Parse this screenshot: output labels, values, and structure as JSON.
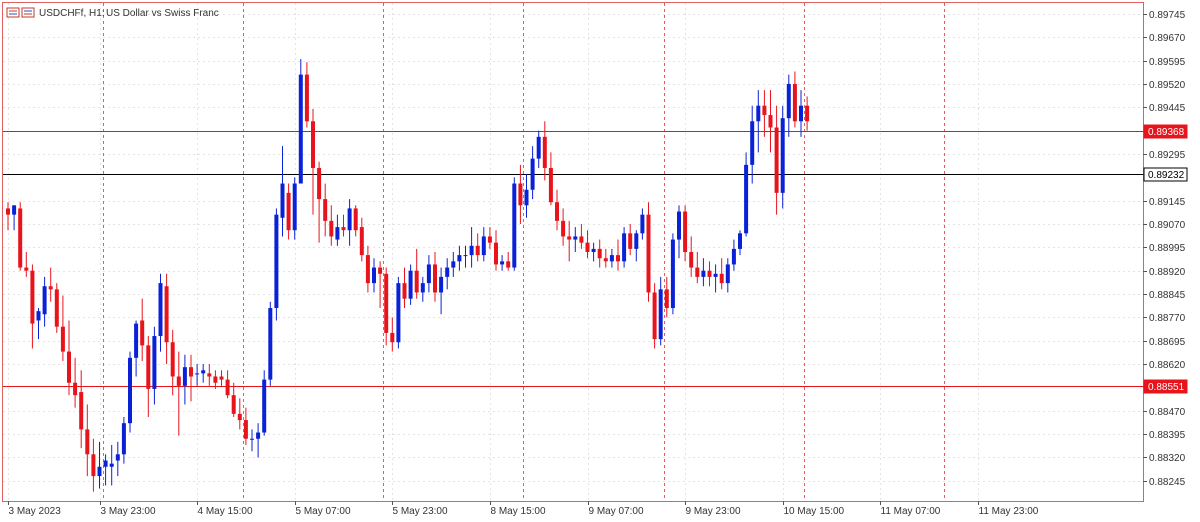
{
  "header": {
    "symbol_label": "USDCHFf, H1:",
    "description": "US Dollar vs Swiss Franc",
    "icon": "chart-window-icon"
  },
  "colors": {
    "bull": "#0a22d6",
    "bear": "#e8141c",
    "frame": "#e06060",
    "grid": "#e4e4e4",
    "period_sep": "#e06060",
    "bid_line": "#000000",
    "level_line": "#e8141c"
  },
  "chart_data": {
    "type": "candlestick",
    "symbol": "USDCHFf",
    "timeframe": "H1",
    "ylim": [
      0.8818,
      0.8978
    ],
    "y_ticks": [
      "0.89745",
      "0.89670",
      "0.89595",
      "0.89520",
      "0.89445",
      "0.89368",
      "0.89295",
      "0.89232",
      "0.89145",
      "0.89070",
      "0.88995",
      "0.88920",
      "0.88845",
      "0.88770",
      "0.88695",
      "0.88620",
      "0.88551",
      "0.88470",
      "0.88395",
      "0.88320",
      "0.88245"
    ],
    "x_ticks": [
      {
        "label": "3 May 2023",
        "index": 0
      },
      {
        "label": "3 May 23:00",
        "index": 15
      },
      {
        "label": "4 May 15:00",
        "index": 31
      },
      {
        "label": "5 May 07:00",
        "index": 47
      },
      {
        "label": "5 May 23:00",
        "index": 63
      },
      {
        "label": "8 May 15:00",
        "index": 79
      },
      {
        "label": "9 May 07:00",
        "index": 95
      },
      {
        "label": "9 May 23:00",
        "index": 111
      },
      {
        "label": "10 May 15:00",
        "index": 127
      },
      {
        "label": "11 May 07:00",
        "index": 143
      },
      {
        "label": "11 May 23:00",
        "index": 159
      }
    ],
    "period_separators": [
      16,
      39,
      62,
      85,
      108,
      131,
      154
    ],
    "horizontal_levels": [
      {
        "label": "0.89368",
        "price": 0.89368,
        "kind": "level"
      },
      {
        "label": "0.88551",
        "price": 0.88551,
        "kind": "level"
      },
      {
        "label": "0.89232",
        "price": 0.89232,
        "kind": "bid"
      }
    ],
    "candles": [
      [
        0.8912,
        0.8914,
        0.8905,
        0.891
      ],
      [
        0.891,
        0.8913,
        0.8905,
        0.8913
      ],
      [
        0.8912,
        0.8914,
        0.8892,
        0.8893
      ],
      [
        0.8893,
        0.8898,
        0.889,
        0.8892
      ],
      [
        0.8892,
        0.8894,
        0.8867,
        0.8875
      ],
      [
        0.8876,
        0.888,
        0.887,
        0.8879
      ],
      [
        0.8878,
        0.889,
        0.8874,
        0.8887
      ],
      [
        0.8887,
        0.8893,
        0.8882,
        0.8886
      ],
      [
        0.8886,
        0.8888,
        0.8872,
        0.8874
      ],
      [
        0.8874,
        0.8884,
        0.8863,
        0.8866
      ],
      [
        0.8866,
        0.8876,
        0.8852,
        0.8856
      ],
      [
        0.8856,
        0.8864,
        0.8848,
        0.8852
      ],
      [
        0.8853,
        0.886,
        0.8835,
        0.8841
      ],
      [
        0.8841,
        0.8849,
        0.8826,
        0.8833
      ],
      [
        0.8833,
        0.8838,
        0.8821,
        0.8826
      ],
      [
        0.8826,
        0.8837,
        0.8822,
        0.8829
      ],
      [
        0.8829,
        0.8833,
        0.8823,
        0.8831
      ],
      [
        0.8829,
        0.8836,
        0.8823,
        0.883
      ],
      [
        0.8831,
        0.8837,
        0.8826,
        0.8833
      ],
      [
        0.8833,
        0.8845,
        0.883,
        0.8843
      ],
      [
        0.8843,
        0.8866,
        0.884,
        0.8864
      ],
      [
        0.8864,
        0.8876,
        0.8858,
        0.8875
      ],
      [
        0.8876,
        0.8883,
        0.8863,
        0.8868
      ],
      [
        0.8868,
        0.8871,
        0.8845,
        0.8854
      ],
      [
        0.8854,
        0.8874,
        0.8849,
        0.8871
      ],
      [
        0.8871,
        0.8891,
        0.8866,
        0.8888
      ],
      [
        0.8887,
        0.8891,
        0.8862,
        0.8869
      ],
      [
        0.8869,
        0.8873,
        0.8852,
        0.8858
      ],
      [
        0.8858,
        0.8866,
        0.8839,
        0.8855
      ],
      [
        0.8855,
        0.8865,
        0.8849,
        0.8861
      ],
      [
        0.8861,
        0.8865,
        0.885,
        0.8858
      ],
      [
        0.8859,
        0.8862,
        0.8855,
        0.8859
      ],
      [
        0.8859,
        0.8862,
        0.8856,
        0.886
      ],
      [
        0.8859,
        0.8862,
        0.8855,
        0.8858
      ],
      [
        0.8858,
        0.886,
        0.8854,
        0.8856
      ],
      [
        0.8858,
        0.886,
        0.8855,
        0.8857
      ],
      [
        0.8857,
        0.886,
        0.8851,
        0.8852
      ],
      [
        0.8852,
        0.8856,
        0.8845,
        0.8846
      ],
      [
        0.8846,
        0.8851,
        0.8841,
        0.8844
      ],
      [
        0.8844,
        0.8848,
        0.8836,
        0.8838
      ],
      [
        0.8838,
        0.8841,
        0.8834,
        0.8838
      ],
      [
        0.8838,
        0.8843,
        0.8832,
        0.884
      ],
      [
        0.884,
        0.886,
        0.8839,
        0.8857
      ],
      [
        0.8857,
        0.8882,
        0.8855,
        0.888
      ],
      [
        0.888,
        0.8912,
        0.8876,
        0.891
      ],
      [
        0.8909,
        0.8932,
        0.8903,
        0.892
      ],
      [
        0.8917,
        0.892,
        0.8902,
        0.8905
      ],
      [
        0.8905,
        0.8922,
        0.8902,
        0.892
      ],
      [
        0.892,
        0.896,
        0.892,
        0.8955
      ],
      [
        0.8955,
        0.8959,
        0.8938,
        0.894
      ],
      [
        0.894,
        0.8944,
        0.891,
        0.8925
      ],
      [
        0.8925,
        0.8927,
        0.8901,
        0.8915
      ],
      [
        0.8915,
        0.892,
        0.8903,
        0.8908
      ],
      [
        0.8908,
        0.8913,
        0.89,
        0.8903
      ],
      [
        0.8902,
        0.891,
        0.89,
        0.8906
      ],
      [
        0.8906,
        0.891,
        0.8903,
        0.8905
      ],
      [
        0.8905,
        0.8915,
        0.89,
        0.8912
      ],
      [
        0.8912,
        0.8913,
        0.8903,
        0.8905
      ],
      [
        0.8906,
        0.8909,
        0.8895,
        0.8897
      ],
      [
        0.8897,
        0.89,
        0.8885,
        0.8888
      ],
      [
        0.8888,
        0.8896,
        0.8885,
        0.8893
      ],
      [
        0.8893,
        0.8895,
        0.888,
        0.8891
      ],
      [
        0.8891,
        0.8893,
        0.8868,
        0.8872
      ],
      [
        0.8872,
        0.8877,
        0.8866,
        0.8869
      ],
      [
        0.8869,
        0.889,
        0.8867,
        0.8888
      ],
      [
        0.8888,
        0.8893,
        0.888,
        0.8883
      ],
      [
        0.8883,
        0.8894,
        0.8881,
        0.8892
      ],
      [
        0.8892,
        0.8899,
        0.8883,
        0.8885
      ],
      [
        0.8885,
        0.889,
        0.8882,
        0.8888
      ],
      [
        0.8888,
        0.8897,
        0.8885,
        0.8894
      ],
      [
        0.8894,
        0.8898,
        0.8882,
        0.8885
      ],
      [
        0.8885,
        0.8893,
        0.8878,
        0.889
      ],
      [
        0.889,
        0.8896,
        0.8886,
        0.8893
      ],
      [
        0.8893,
        0.8898,
        0.889,
        0.8895
      ],
      [
        0.8895,
        0.89,
        0.8892,
        0.8897
      ],
      [
        0.8897,
        0.89,
        0.8893,
        0.8897
      ],
      [
        0.8897,
        0.8906,
        0.8893,
        0.89
      ],
      [
        0.89,
        0.8904,
        0.8895,
        0.8897
      ],
      [
        0.8897,
        0.8906,
        0.8895,
        0.8903
      ],
      [
        0.8903,
        0.8906,
        0.8899,
        0.8901
      ],
      [
        0.8901,
        0.8905,
        0.8892,
        0.8894
      ],
      [
        0.8894,
        0.8897,
        0.8892,
        0.8895
      ],
      [
        0.8895,
        0.8898,
        0.8892,
        0.8893
      ],
      [
        0.8893,
        0.8922,
        0.8892,
        0.892
      ],
      [
        0.892,
        0.8926,
        0.8907,
        0.8913
      ],
      [
        0.8913,
        0.8923,
        0.8909,
        0.8918
      ],
      [
        0.8918,
        0.8932,
        0.8915,
        0.8928
      ],
      [
        0.8928,
        0.8937,
        0.8925,
        0.8935
      ],
      [
        0.8935,
        0.894,
        0.8921,
        0.8925
      ],
      [
        0.8925,
        0.893,
        0.8913,
        0.8914
      ],
      [
        0.8914,
        0.8918,
        0.8905,
        0.8908
      ],
      [
        0.8908,
        0.8912,
        0.89,
        0.8903
      ],
      [
        0.8903,
        0.8908,
        0.8895,
        0.8902
      ],
      [
        0.8902,
        0.8906,
        0.8898,
        0.8903
      ],
      [
        0.8903,
        0.8907,
        0.8899,
        0.8901
      ],
      [
        0.8901,
        0.8905,
        0.8896,
        0.8898
      ],
      [
        0.8898,
        0.8901,
        0.8895,
        0.8899
      ],
      [
        0.8899,
        0.8902,
        0.8893,
        0.8896
      ],
      [
        0.8896,
        0.8899,
        0.8893,
        0.8895
      ],
      [
        0.8895,
        0.8899,
        0.8893,
        0.8897
      ],
      [
        0.8897,
        0.8902,
        0.8892,
        0.8895
      ],
      [
        0.8895,
        0.8906,
        0.8893,
        0.8904
      ],
      [
        0.8904,
        0.8907,
        0.8897,
        0.8899
      ],
      [
        0.8899,
        0.8905,
        0.8895,
        0.8904
      ],
      [
        0.8904,
        0.8912,
        0.8902,
        0.891
      ],
      [
        0.891,
        0.8914,
        0.8882,
        0.8885
      ],
      [
        0.8885,
        0.8888,
        0.8867,
        0.887
      ],
      [
        0.887,
        0.889,
        0.8868,
        0.8886
      ],
      [
        0.8886,
        0.889,
        0.8877,
        0.888
      ],
      [
        0.888,
        0.8904,
        0.8878,
        0.8902
      ],
      [
        0.8902,
        0.8913,
        0.8896,
        0.8911
      ],
      [
        0.8911,
        0.8913,
        0.8895,
        0.8898
      ],
      [
        0.8898,
        0.8903,
        0.889,
        0.8893
      ],
      [
        0.8893,
        0.8898,
        0.8888,
        0.889
      ],
      [
        0.889,
        0.8896,
        0.8887,
        0.8892
      ],
      [
        0.8892,
        0.8895,
        0.8887,
        0.889
      ],
      [
        0.889,
        0.8894,
        0.8885,
        0.8891
      ],
      [
        0.8891,
        0.8896,
        0.8886,
        0.8888
      ],
      [
        0.8888,
        0.8896,
        0.8885,
        0.8894
      ],
      [
        0.8894,
        0.8902,
        0.8892,
        0.8899
      ],
      [
        0.8899,
        0.8905,
        0.8897,
        0.8904
      ],
      [
        0.8904,
        0.893,
        0.8903,
        0.8926
      ],
      [
        0.8926,
        0.8945,
        0.892,
        0.894
      ],
      [
        0.894,
        0.895,
        0.893,
        0.8945
      ],
      [
        0.8945,
        0.895,
        0.8935,
        0.8942
      ],
      [
        0.8942,
        0.895,
        0.893,
        0.8938
      ],
      [
        0.8938,
        0.8945,
        0.891,
        0.8917
      ],
      [
        0.8917,
        0.8945,
        0.8912,
        0.8941
      ],
      [
        0.8941,
        0.8955,
        0.8935,
        0.8952
      ],
      [
        0.8952,
        0.8956,
        0.8938,
        0.894
      ],
      [
        0.894,
        0.895,
        0.8935,
        0.8945
      ],
      [
        0.8945,
        0.8948,
        0.8937,
        0.894
      ]
    ]
  }
}
